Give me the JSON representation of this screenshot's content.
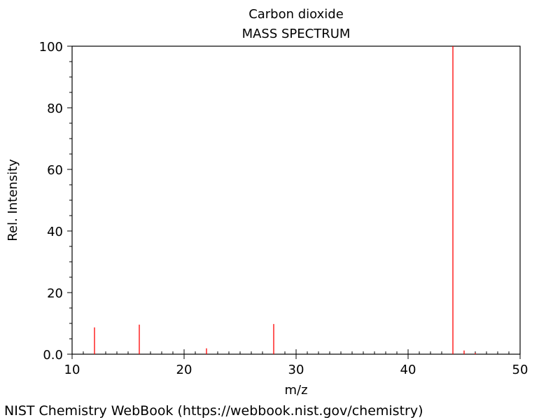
{
  "chart_data": {
    "type": "bar",
    "title": "Carbon dioxide",
    "subtitle": "MASS SPECTRUM",
    "xlabel": "m/z",
    "ylabel": "Rel. Intensity",
    "xlim": [
      10,
      50
    ],
    "ylim": [
      0,
      100
    ],
    "xticks": [
      10,
      20,
      30,
      40,
      50
    ],
    "yticks": [
      0,
      20,
      40,
      60,
      80,
      100
    ],
    "ytick_labels": [
      "0.0",
      "20",
      "40",
      "60",
      "80",
      "100"
    ],
    "grid": false,
    "bar_color": "#ff0000",
    "peaks": [
      {
        "mz": 12,
        "intensity": 8.7
      },
      {
        "mz": 16,
        "intensity": 9.6
      },
      {
        "mz": 22,
        "intensity": 1.9
      },
      {
        "mz": 28,
        "intensity": 9.8
      },
      {
        "mz": 44,
        "intensity": 100
      },
      {
        "mz": 45,
        "intensity": 1.2
      },
      {
        "mz": 46,
        "intensity": 0.4
      }
    ]
  },
  "footer": "NIST Chemistry WebBook (https://webbook.nist.gov/chemistry)"
}
